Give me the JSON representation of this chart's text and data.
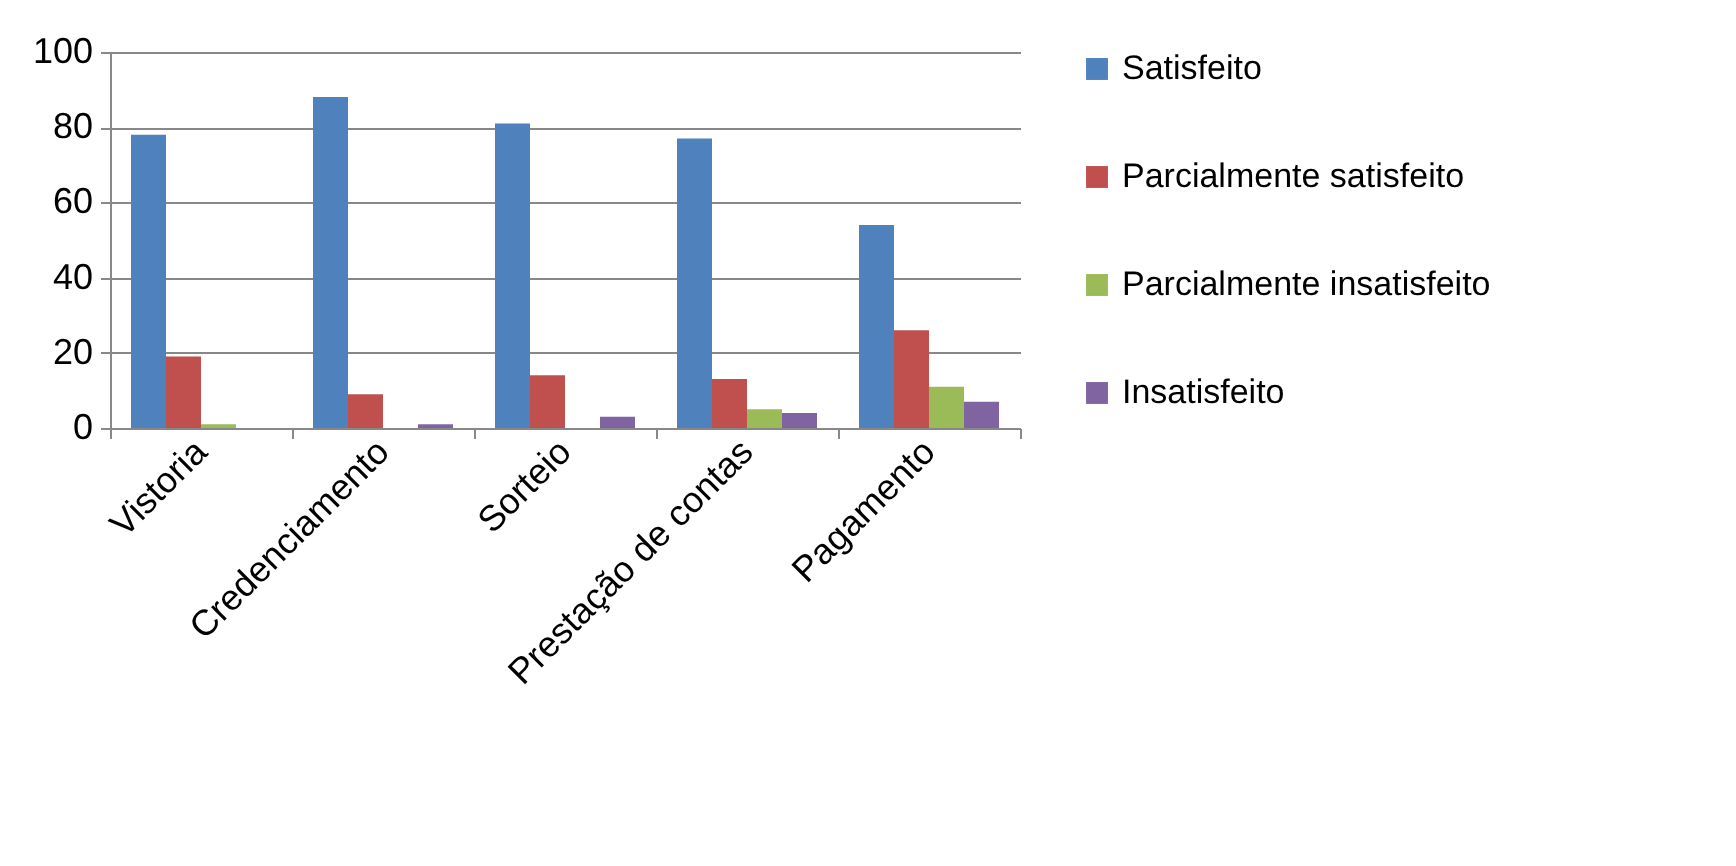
{
  "chart_data": {
    "type": "bar",
    "categories": [
      "Vistoria",
      "Credenciamento",
      "Sorteio",
      "Prestação de contas",
      "Pagamento"
    ],
    "series": [
      {
        "name": "Satisfeito",
        "color": "#4f81bd",
        "values": [
          78,
          88,
          81,
          77,
          54
        ]
      },
      {
        "name": "Parcialmente satisfeito",
        "color": "#c0504d",
        "values": [
          19,
          9,
          14,
          13,
          26
        ]
      },
      {
        "name": "Parcialmente insatisfeito",
        "color": "#9bbb59",
        "values": [
          1,
          0,
          0,
          5,
          11
        ]
      },
      {
        "name": "Insatisfeito",
        "color": "#8064a2",
        "values": [
          0,
          1,
          3,
          4,
          7
        ]
      }
    ],
    "ylim": [
      0,
      100
    ],
    "yticks": [
      0,
      20,
      40,
      60,
      80,
      100
    ],
    "grid": "y",
    "legend": "right"
  }
}
